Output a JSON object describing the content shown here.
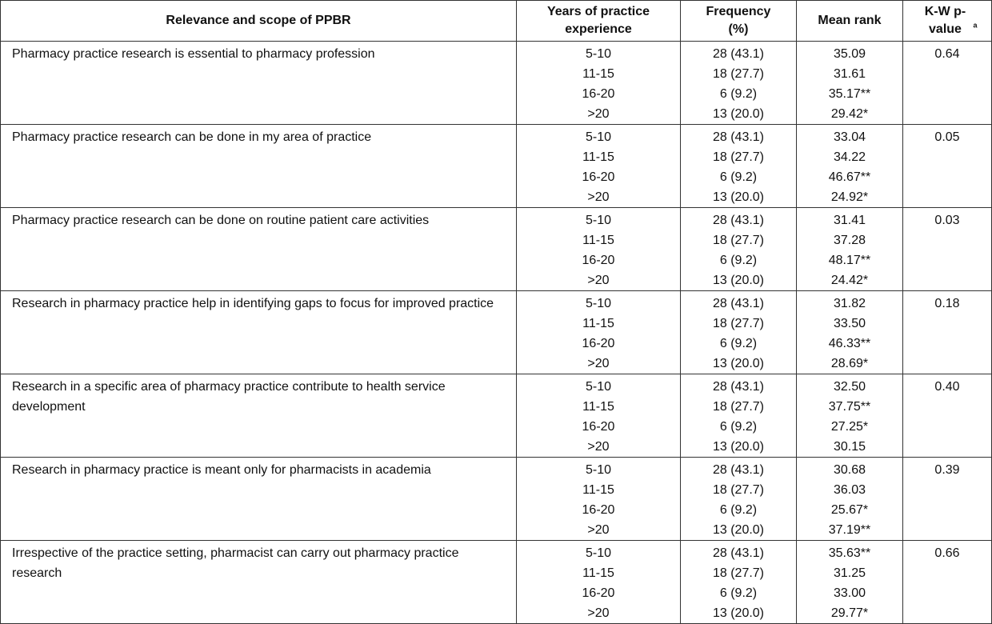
{
  "table": {
    "header": [
      "Relevance and scope of PPBR",
      "Years of practice experience",
      "Frequency (%)",
      "Mean rank",
      "K-W p-value"
    ],
    "header_note": "a",
    "rows": [
      {
        "statement": "Pharmacy practice research is essential to pharmacy profession",
        "years": [
          "5-10",
          "11-15",
          "16-20",
          ">20"
        ],
        "frequency": [
          "28 (43.1)",
          "18 (27.7)",
          "6 (9.2)",
          "13 (20.0)"
        ],
        "mean_rank": [
          "35.09",
          "31.61",
          "35.17**",
          "29.42*"
        ],
        "p_value": "0.64"
      },
      {
        "statement": "Pharmacy practice research can be done in my area of practice",
        "years": [
          "5-10",
          "11-15",
          "16-20",
          ">20"
        ],
        "frequency": [
          "28 (43.1)",
          "18 (27.7)",
          "6 (9.2)",
          "13 (20.0)"
        ],
        "mean_rank": [
          "33.04",
          "34.22",
          "46.67**",
          "24.92*"
        ],
        "p_value": "0.05"
      },
      {
        "statement": "Pharmacy practice research can be done on routine patient care activities",
        "years": [
          "5-10",
          "11-15",
          "16-20",
          ">20"
        ],
        "frequency": [
          "28 (43.1)",
          "18 (27.7)",
          "6 (9.2)",
          "13 (20.0)"
        ],
        "mean_rank": [
          "31.41",
          "37.28",
          "48.17**",
          "24.42*"
        ],
        "p_value": "0.03"
      },
      {
        "statement": "Research in pharmacy practice help in identifying gaps to focus for improved practice",
        "years": [
          "5-10",
          "11-15",
          "16-20",
          ">20"
        ],
        "frequency": [
          "28 (43.1)",
          "18 (27.7)",
          "6 (9.2)",
          "13 (20.0)"
        ],
        "mean_rank": [
          "31.82",
          "33.50",
          "46.33**",
          "28.69*"
        ],
        "p_value": "0.18"
      },
      {
        "statement": "Research in a specific area of pharmacy practice contribute to health service development",
        "years": [
          "5-10",
          "11-15",
          "16-20",
          ">20"
        ],
        "frequency": [
          "28 (43.1)",
          "18 (27.7)",
          "6 (9.2)",
          "13 (20.0)"
        ],
        "mean_rank": [
          "32.50",
          "37.75**",
          "27.25*",
          "30.15"
        ],
        "p_value": "0.40"
      },
      {
        "statement": "Research in pharmacy practice is meant only for pharmacists in academia",
        "years": [
          "5-10",
          "11-15",
          "16-20",
          ">20"
        ],
        "frequency": [
          "28 (43.1)",
          "18 (27.7)",
          "6 (9.2)",
          "13 (20.0)"
        ],
        "mean_rank": [
          "30.68",
          "36.03",
          "25.67*",
          "37.19**"
        ],
        "p_value": "0.39"
      },
      {
        "statement": "Irrespective of the practice setting, pharmacist can carry out pharmacy practice research",
        "years": [
          "5-10",
          "11-15",
          "16-20",
          ">20"
        ],
        "frequency": [
          "28 (43.1)",
          "18 (27.7)",
          "6 (9.2)",
          "13 (20.0)"
        ],
        "mean_rank": [
          "35.63**",
          "31.25",
          "33.00",
          "29.77*"
        ],
        "p_value": "0.66"
      }
    ]
  }
}
